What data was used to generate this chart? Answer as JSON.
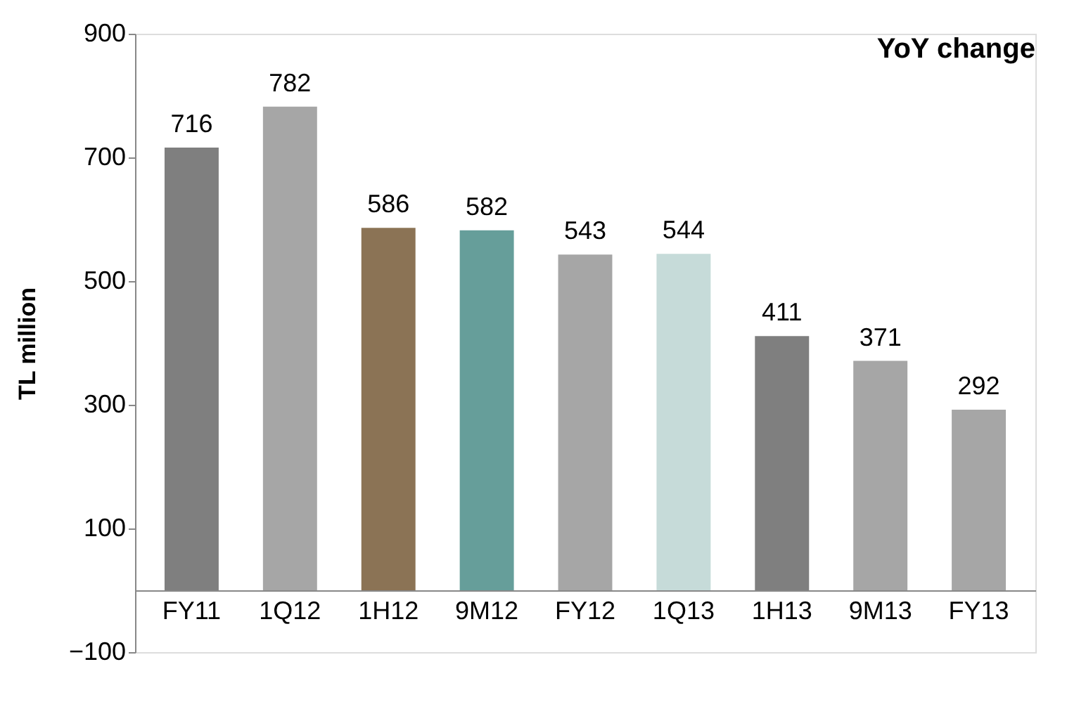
{
  "chart_data": {
    "type": "bar",
    "title": "YoY change",
    "ylabel": "TL million",
    "categories": [
      "FY11",
      "1Q12",
      "1H12",
      "9M12",
      "FY12",
      "1Q13",
      "1H13",
      "9M13",
      "FY13"
    ],
    "values": [
      716,
      782,
      586,
      582,
      543,
      544,
      411,
      371,
      292
    ],
    "colors": [
      "#7f7f7f",
      "#a6a6a6",
      "#8b7355",
      "#669e9a",
      "#a6a6a6",
      "#c6dbd9",
      "#7f7f7f",
      "#a6a6a6",
      "#a6a6a6"
    ],
    "ylim": [
      -100,
      900
    ],
    "yticks": [
      -100,
      100,
      300,
      500,
      700,
      900
    ],
    "data_labels": true
  }
}
